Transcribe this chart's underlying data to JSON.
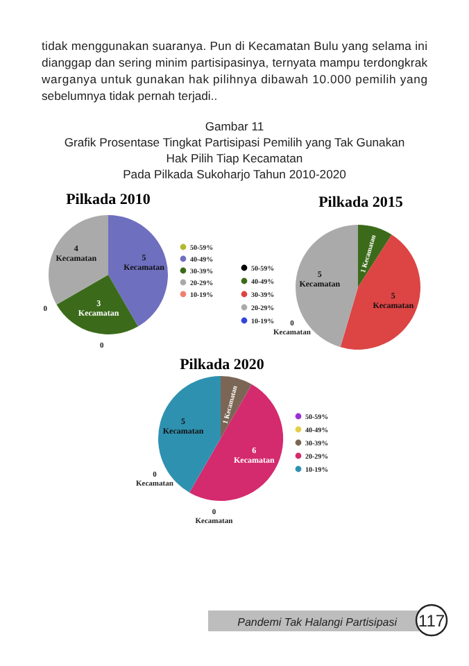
{
  "chart_data": [
    {
      "type": "pie",
      "title": "Pilkada 2010",
      "categories": [
        "50-59%",
        "40-49%",
        "30-39%",
        "20-29%",
        "10-19%"
      ],
      "values": [
        0,
        5,
        3,
        4,
        0
      ],
      "colors": [
        "#b5b82f",
        "#6f6fbf",
        "#3b6b1a",
        "#aaaaaa",
        "#f08070"
      ],
      "value_labels": [
        "0",
        "5 Kecamatan",
        "3 Kecamatan",
        "4 Kecamatan",
        "0"
      ],
      "legend": "right",
      "annotations": [
        "tidak menggunakan suaranya. Pun di Kecamatan Bulu yang selama ini dianggap dan sering minim partisipasinya, ternyata mampu terdongkrak warganya untuk gunakan hak pilihnya dibawah 10.000 pemilih yang sebelumnya tidak pernah terjadi..",
        "Gambar 11",
        "Grafik Prosentase Tingkat Partisipasi Pemilih yang Tak Gunakan",
        "Hak Pilih Tiap Kecamatan",
        "Pada Pilkada Sukoharjo Tahun 2010-2020"
      ]
    },
    {
      "type": "pie",
      "title": "Pilkada 2015",
      "categories": [
        "50-59%",
        "40-49%",
        "30-39%",
        "20-29%",
        "10-19%"
      ],
      "values": [
        0,
        1,
        5,
        5,
        0
      ],
      "colors": [
        "#000000",
        "#3b6b1a",
        "#dd4444",
        "#aaaaaa",
        "#3344dd"
      ],
      "value_labels": [
        null,
        "1 Kecamatan",
        "5 Kecamatan",
        "5 Kecamatan",
        "0 Kecamatan"
      ],
      "legend": "left"
    },
    {
      "type": "pie",
      "title": "Pilkada 2020",
      "categories": [
        "50-59%",
        "40-49%",
        "30-39%",
        "20-29%",
        "10-19%"
      ],
      "values": [
        0,
        0,
        1,
        6,
        5
      ],
      "colors": [
        "#9b30d9",
        "#e3d048",
        "#7b6655",
        "#d42a6e",
        "#2f91b0"
      ],
      "value_labels": [
        "0 Kecamatan",
        "0 Kecamatan",
        "1 Kecamatan",
        "6 Kecamatan",
        "5 Kecamatan"
      ],
      "legend": "right",
      "annotations": [
        "Pandemi Tak Halangi Partisipasi",
        "117"
      ]
    }
  ]
}
